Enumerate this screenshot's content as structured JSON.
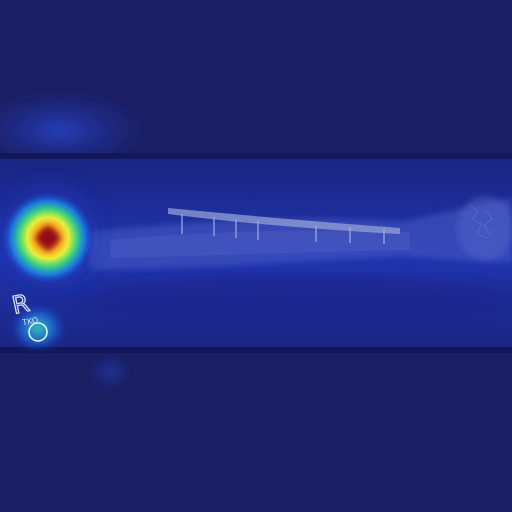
{
  "image": {
    "marker": {
      "side_letter": "R",
      "sub_text": "TKO"
    },
    "colors": {
      "background": "#1c1f63",
      "film_band": "#1e2f9a",
      "heat_hot": "#c0201a",
      "heat_warm": "#f2a21c",
      "heat_mid": "#3bd67a",
      "heat_low": "#1c6ee6",
      "plate": "#9aa6d8"
    }
  }
}
